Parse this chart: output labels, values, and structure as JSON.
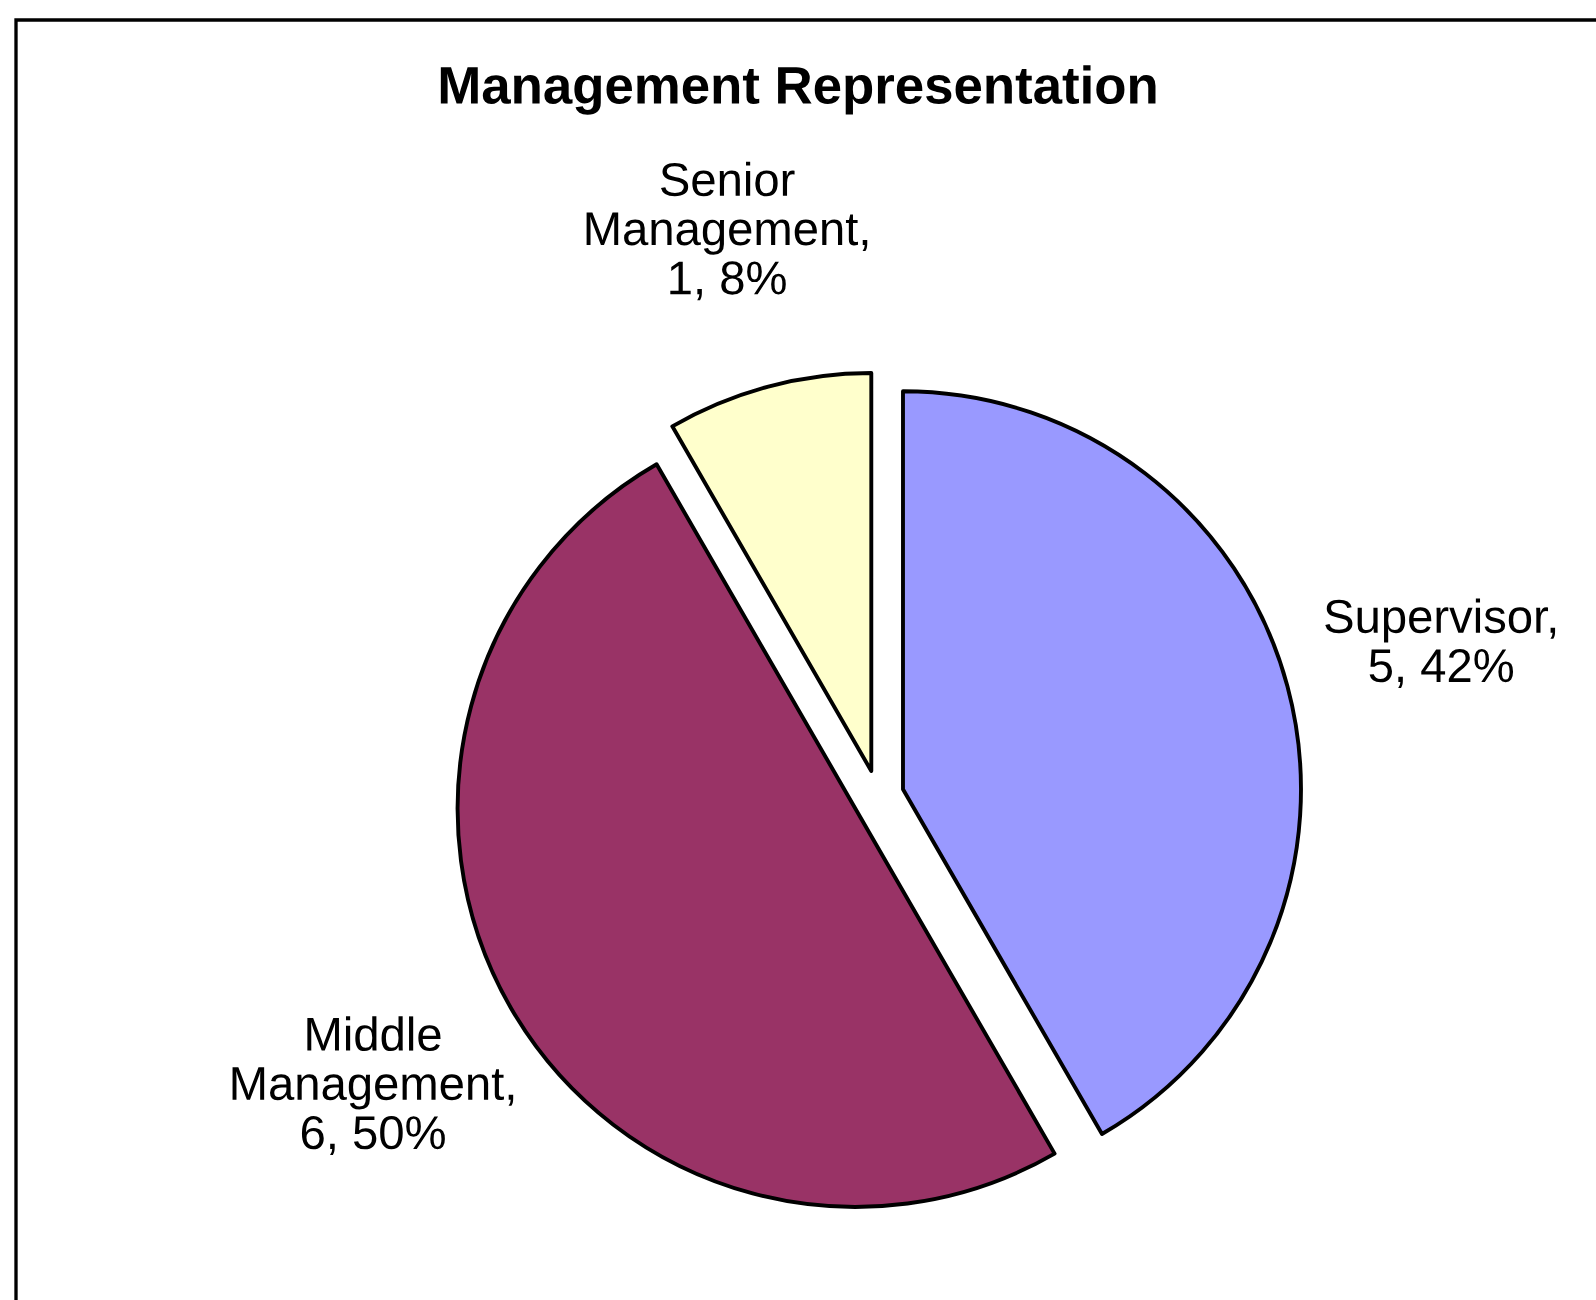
{
  "chart_data": {
    "type": "pie",
    "title": "Management Representation",
    "categories": [
      "Supervisor",
      "Middle Management",
      "Senior Management"
    ],
    "values": [
      5,
      6,
      1
    ],
    "colors": [
      "#9999ff",
      "#993366",
      "#ffffcc"
    ],
    "value_labels": [
      ", 5, 42%",
      ", 6, 50%",
      ", 1, 8%"
    ]
  }
}
